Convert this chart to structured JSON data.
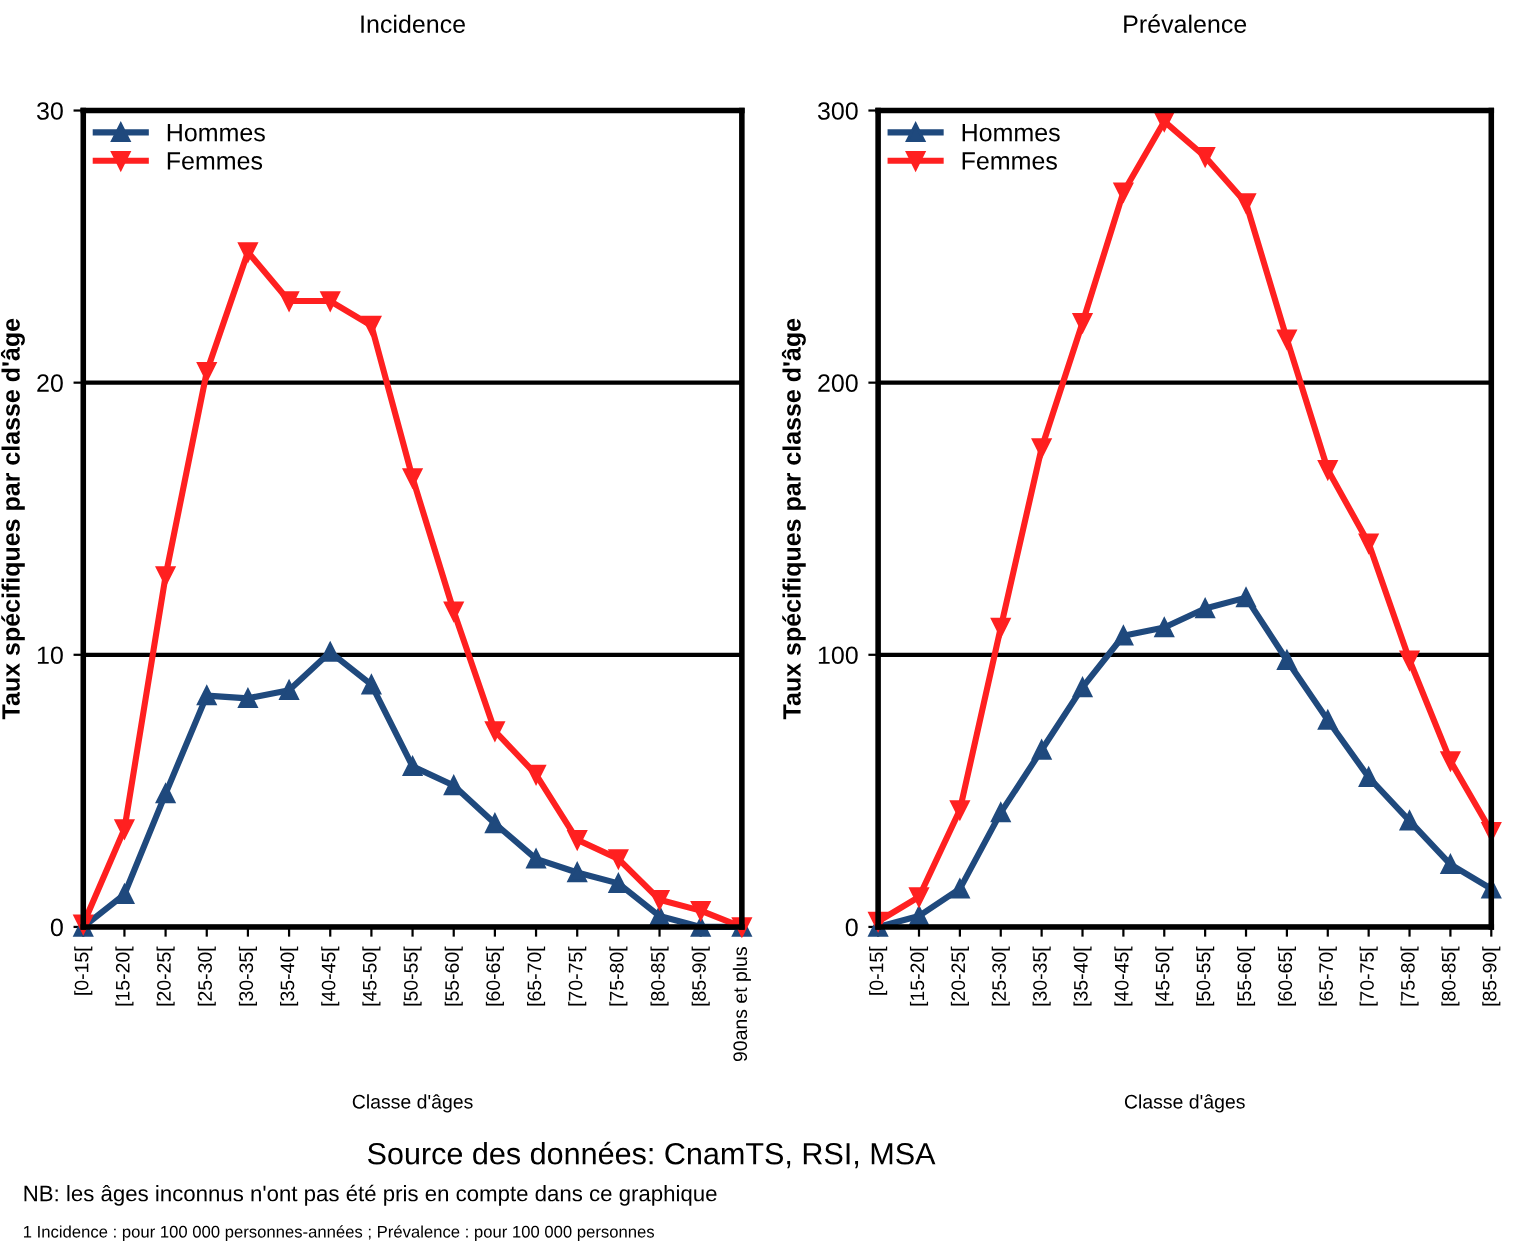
{
  "chart_data": [
    {
      "type": "line",
      "title": "Incidence",
      "xlabel": "Classe d'âges",
      "ylabel": "Taux spécifiques par classe d'âge",
      "categories": [
        "[0-15[",
        "[15-20[",
        "[20-25[",
        "[25-30[",
        "[30-35[",
        "[35-40[",
        "[40-45[",
        "[45-50[",
        "[50-55[",
        "[55-60[",
        "[60-65[",
        "[65-70[",
        "[70-75[",
        "[75-80[",
        "[80-85[",
        "[85-90[",
        "90ans et plus"
      ],
      "series": [
        {
          "name": "Hommes",
          "color": "#1f497d",
          "marker": "triangle",
          "values": [
            0,
            1.2,
            4.9,
            8.5,
            8.4,
            8.7,
            10.1,
            8.9,
            5.9,
            5.2,
            3.8,
            2.5,
            2.0,
            1.6,
            0.4,
            0,
            0
          ]
        },
        {
          "name": "Femmes",
          "color": "#ff2020",
          "marker": "triangle_down",
          "values": [
            0.1,
            3.6,
            12.9,
            20.4,
            24.8,
            23.0,
            23.0,
            22.1,
            16.5,
            11.6,
            7.2,
            5.6,
            3.2,
            2.5,
            1.0,
            0.6,
            0
          ]
        }
      ],
      "ylim": [
        0,
        30
      ],
      "yticks": [
        0,
        10,
        20,
        30
      ],
      "grid": "y",
      "legend": "top left",
      "annotations": [
        "Source des données: CnamTS, RSI, MSA",
        "NB: les âges inconnus n'ont pas été pris en compte dans ce graphique",
        "1 Incidence : pour 100 000 personnes-années ; Prévalence : pour 100 000 personnes"
      ]
    },
    {
      "type": "line",
      "title": "Prévalence",
      "xlabel": "Classe d'âges",
      "ylabel": "Taux spécifiques par classe d'âge",
      "categories": [
        "[0-15[",
        "[15-20[",
        "[20-25[",
        "[25-30[",
        "[30-35[",
        "[35-40[",
        "[40-45[",
        "[45-50[",
        "[50-55[",
        "[55-60[",
        "[60-65[",
        "[65-70[",
        "[70-75[",
        "[75-80[",
        "[80-85[",
        "[85-90["
      ],
      "series": [
        {
          "name": "Hommes",
          "color": "#1f497d",
          "marker": "triangle",
          "values": [
            0,
            4,
            14,
            42,
            65,
            88,
            107,
            110,
            117,
            121,
            98,
            76,
            55,
            39,
            23,
            14
          ]
        },
        {
          "name": "Femmes",
          "color": "#ff2020",
          "marker": "triangle_down",
          "values": [
            2,
            11,
            43,
            110,
            176,
            222,
            270,
            296,
            283,
            266,
            216,
            168,
            141,
            98,
            61,
            35
          ]
        }
      ],
      "ylim": [
        0,
        300
      ],
      "yticks": [
        0,
        100,
        200,
        300
      ],
      "grid": "y",
      "legend": "top left"
    }
  ]
}
